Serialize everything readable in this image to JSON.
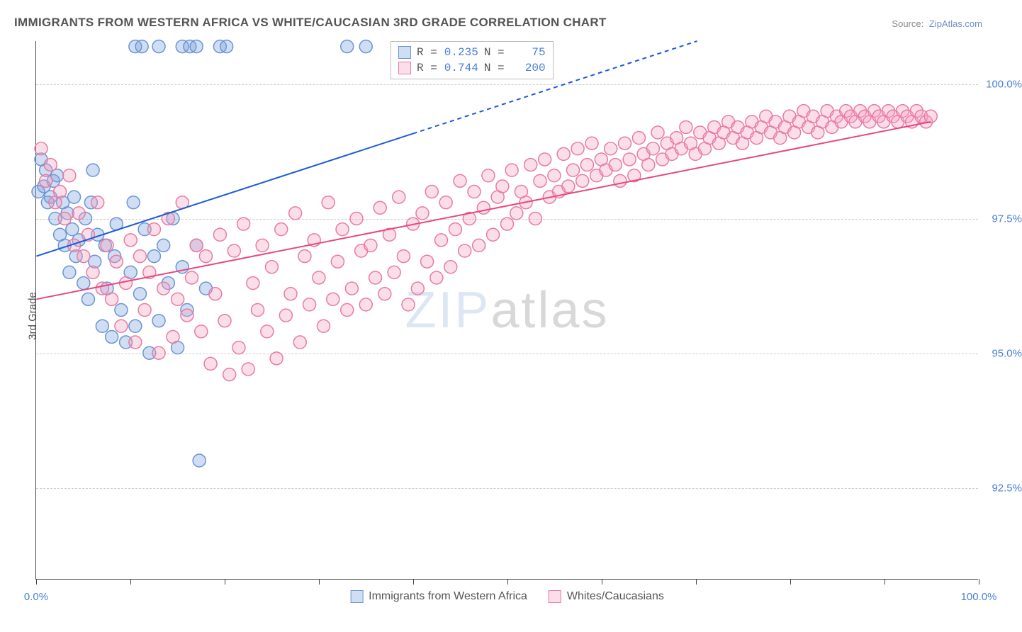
{
  "title": "IMMIGRANTS FROM WESTERN AFRICA VS WHITE/CAUCASIAN 3RD GRADE CORRELATION CHART",
  "source_label": "Source:",
  "source_value": "ZipAtlas.com",
  "ylabel": "3rd Grade",
  "watermark_a": "ZIP",
  "watermark_b": "atlas",
  "chart": {
    "type": "scatter-correlation",
    "background_color": "#ffffff",
    "grid_color": "#cccccc",
    "axis_color": "#444444",
    "label_color": "#4a7fd8",
    "xlim": [
      0,
      100
    ],
    "ylim": [
      90.8,
      100.8
    ],
    "xtick_positions": [
      0,
      10,
      20,
      30,
      40,
      50,
      60,
      70,
      80,
      90,
      100
    ],
    "xtick_labels": {
      "0": "0.0%",
      "100": "100.0%"
    },
    "ytick_positions": [
      92.5,
      95.0,
      97.5,
      100.0
    ],
    "ytick_labels": [
      "92.5%",
      "95.0%",
      "97.5%",
      "100.0%"
    ],
    "marker_radius": 9,
    "marker_stroke_width": 1.5,
    "series": [
      {
        "id": "blue",
        "label": "Immigrants from Western Africa",
        "fill": "rgba(120,160,220,0.35)",
        "stroke": "#6b94d6",
        "R_label": "R =",
        "R": "0.235",
        "N_label": "N =",
        "N": "75",
        "trend": {
          "x1": 0,
          "y1": 96.8,
          "x2": 100,
          "y2": 102.5,
          "stroke": "#1c5cd8",
          "width": 2,
          "dash_after_x": 40
        },
        "points": [
          [
            0.2,
            98.0
          ],
          [
            0.5,
            98.6
          ],
          [
            0.8,
            98.1
          ],
          [
            1.0,
            98.4
          ],
          [
            1.2,
            97.8
          ],
          [
            1.5,
            97.9
          ],
          [
            1.8,
            98.2
          ],
          [
            2.0,
            97.5
          ],
          [
            2.2,
            98.3
          ],
          [
            2.5,
            97.2
          ],
          [
            2.8,
            97.8
          ],
          [
            3.0,
            97.0
          ],
          [
            3.3,
            97.6
          ],
          [
            3.5,
            96.5
          ],
          [
            3.8,
            97.3
          ],
          [
            4.0,
            97.9
          ],
          [
            4.2,
            96.8
          ],
          [
            4.5,
            97.1
          ],
          [
            5.0,
            96.3
          ],
          [
            5.2,
            97.5
          ],
          [
            5.5,
            96.0
          ],
          [
            5.8,
            97.8
          ],
          [
            6.0,
            98.4
          ],
          [
            6.2,
            96.7
          ],
          [
            6.5,
            97.2
          ],
          [
            7.0,
            95.5
          ],
          [
            7.3,
            97.0
          ],
          [
            7.5,
            96.2
          ],
          [
            8.0,
            95.3
          ],
          [
            8.3,
            96.8
          ],
          [
            8.5,
            97.4
          ],
          [
            9.0,
            95.8
          ],
          [
            9.5,
            95.2
          ],
          [
            10.0,
            96.5
          ],
          [
            10.3,
            97.8
          ],
          [
            10.5,
            95.5
          ],
          [
            11.0,
            96.1
          ],
          [
            11.5,
            97.3
          ],
          [
            12.0,
            95.0
          ],
          [
            12.5,
            96.8
          ],
          [
            13.0,
            95.6
          ],
          [
            13.5,
            97.0
          ],
          [
            14.0,
            96.3
          ],
          [
            14.5,
            97.5
          ],
          [
            15.0,
            95.1
          ],
          [
            15.5,
            96.6
          ],
          [
            16.0,
            95.8
          ],
          [
            17.0,
            97.0
          ],
          [
            17.3,
            93.0
          ],
          [
            18.0,
            96.2
          ],
          [
            10.5,
            100.7
          ],
          [
            11.2,
            100.7
          ],
          [
            13.0,
            100.7
          ],
          [
            15.5,
            100.7
          ],
          [
            16.3,
            100.7
          ],
          [
            17.0,
            100.7
          ],
          [
            19.5,
            100.7
          ],
          [
            20.2,
            100.7
          ],
          [
            33.0,
            100.7
          ],
          [
            35.0,
            100.7
          ]
        ]
      },
      {
        "id": "pink",
        "label": "Whites/Caucasians",
        "fill": "rgba(245,160,190,0.35)",
        "stroke": "#e87ba3",
        "R_label": "R =",
        "R": "0.744",
        "N_label": "N =",
        "N": "200",
        "trend": {
          "x1": 0,
          "y1": 96.0,
          "x2": 95,
          "y2": 99.3,
          "stroke": "#e8477f",
          "width": 2
        },
        "points": [
          [
            0.5,
            98.8
          ],
          [
            1.0,
            98.2
          ],
          [
            1.5,
            98.5
          ],
          [
            2.0,
            97.8
          ],
          [
            2.5,
            98.0
          ],
          [
            3.0,
            97.5
          ],
          [
            3.5,
            98.3
          ],
          [
            4.0,
            97.0
          ],
          [
            4.5,
            97.6
          ],
          [
            5.0,
            96.8
          ],
          [
            5.5,
            97.2
          ],
          [
            6.0,
            96.5
          ],
          [
            6.5,
            97.8
          ],
          [
            7.0,
            96.2
          ],
          [
            7.5,
            97.0
          ],
          [
            8.0,
            96.0
          ],
          [
            8.5,
            96.7
          ],
          [
            9.0,
            95.5
          ],
          [
            9.5,
            96.3
          ],
          [
            10.0,
            97.1
          ],
          [
            10.5,
            95.2
          ],
          [
            11.0,
            96.8
          ],
          [
            11.5,
            95.8
          ],
          [
            12.0,
            96.5
          ],
          [
            12.5,
            97.3
          ],
          [
            13.0,
            95.0
          ],
          [
            13.5,
            96.2
          ],
          [
            14.0,
            97.5
          ],
          [
            14.5,
            95.3
          ],
          [
            15.0,
            96.0
          ],
          [
            15.5,
            97.8
          ],
          [
            16.0,
            95.7
          ],
          [
            16.5,
            96.4
          ],
          [
            17.0,
            97.0
          ],
          [
            17.5,
            95.4
          ],
          [
            18.0,
            96.8
          ],
          [
            18.5,
            94.8
          ],
          [
            19.0,
            96.1
          ],
          [
            19.5,
            97.2
          ],
          [
            20.0,
            95.6
          ],
          [
            20.5,
            94.6
          ],
          [
            21.0,
            96.9
          ],
          [
            21.5,
            95.1
          ],
          [
            22.0,
            97.4
          ],
          [
            22.5,
            94.7
          ],
          [
            23.0,
            96.3
          ],
          [
            23.5,
            95.8
          ],
          [
            24.0,
            97.0
          ],
          [
            24.5,
            95.4
          ],
          [
            25.0,
            96.6
          ],
          [
            25.5,
            94.9
          ],
          [
            26.0,
            97.3
          ],
          [
            26.5,
            95.7
          ],
          [
            27.0,
            96.1
          ],
          [
            27.5,
            97.6
          ],
          [
            28.0,
            95.2
          ],
          [
            28.5,
            96.8
          ],
          [
            29.0,
            95.9
          ],
          [
            29.5,
            97.1
          ],
          [
            30.0,
            96.4
          ],
          [
            30.5,
            95.5
          ],
          [
            31.0,
            97.8
          ],
          [
            31.5,
            96.0
          ],
          [
            32.0,
            96.7
          ],
          [
            32.5,
            97.3
          ],
          [
            33.0,
            95.8
          ],
          [
            33.5,
            96.2
          ],
          [
            34.0,
            97.5
          ],
          [
            34.5,
            96.9
          ],
          [
            35.0,
            95.9
          ],
          [
            35.5,
            97.0
          ],
          [
            36.0,
            96.4
          ],
          [
            36.5,
            97.7
          ],
          [
            37.0,
            96.1
          ],
          [
            37.5,
            97.2
          ],
          [
            38.0,
            96.5
          ],
          [
            38.5,
            97.9
          ],
          [
            39.0,
            96.8
          ],
          [
            39.5,
            95.9
          ],
          [
            40.0,
            97.4
          ],
          [
            40.5,
            96.2
          ],
          [
            41.0,
            97.6
          ],
          [
            41.5,
            96.7
          ],
          [
            42.0,
            98.0
          ],
          [
            42.5,
            96.4
          ],
          [
            43.0,
            97.1
          ],
          [
            43.5,
            97.8
          ],
          [
            44.0,
            96.6
          ],
          [
            44.5,
            97.3
          ],
          [
            45.0,
            98.2
          ],
          [
            45.5,
            96.9
          ],
          [
            46.0,
            97.5
          ],
          [
            46.5,
            98.0
          ],
          [
            47.0,
            97.0
          ],
          [
            47.5,
            97.7
          ],
          [
            48.0,
            98.3
          ],
          [
            48.5,
            97.2
          ],
          [
            49.0,
            97.9
          ],
          [
            49.5,
            98.1
          ],
          [
            50.0,
            97.4
          ],
          [
            50.5,
            98.4
          ],
          [
            51.0,
            97.6
          ],
          [
            51.5,
            98.0
          ],
          [
            52.0,
            97.8
          ],
          [
            52.5,
            98.5
          ],
          [
            53.0,
            97.5
          ],
          [
            53.5,
            98.2
          ],
          [
            54.0,
            98.6
          ],
          [
            54.5,
            97.9
          ],
          [
            55.0,
            98.3
          ],
          [
            55.5,
            98.0
          ],
          [
            56.0,
            98.7
          ],
          [
            56.5,
            98.1
          ],
          [
            57.0,
            98.4
          ],
          [
            57.5,
            98.8
          ],
          [
            58.0,
            98.2
          ],
          [
            58.5,
            98.5
          ],
          [
            59.0,
            98.9
          ],
          [
            59.5,
            98.3
          ],
          [
            60.0,
            98.6
          ],
          [
            60.5,
            98.4
          ],
          [
            61.0,
            98.8
          ],
          [
            61.5,
            98.5
          ],
          [
            62.0,
            98.2
          ],
          [
            62.5,
            98.9
          ],
          [
            63.0,
            98.6
          ],
          [
            63.5,
            98.3
          ],
          [
            64.0,
            99.0
          ],
          [
            64.5,
            98.7
          ],
          [
            65.0,
            98.5
          ],
          [
            65.5,
            98.8
          ],
          [
            66.0,
            99.1
          ],
          [
            66.5,
            98.6
          ],
          [
            67.0,
            98.9
          ],
          [
            67.5,
            98.7
          ],
          [
            68.0,
            99.0
          ],
          [
            68.5,
            98.8
          ],
          [
            69.0,
            99.2
          ],
          [
            69.5,
            98.9
          ],
          [
            70.0,
            98.7
          ],
          [
            70.5,
            99.1
          ],
          [
            71.0,
            98.8
          ],
          [
            71.5,
            99.0
          ],
          [
            72.0,
            99.2
          ],
          [
            72.5,
            98.9
          ],
          [
            73.0,
            99.1
          ],
          [
            73.5,
            99.3
          ],
          [
            74.0,
            99.0
          ],
          [
            74.5,
            99.2
          ],
          [
            75.0,
            98.9
          ],
          [
            75.5,
            99.1
          ],
          [
            76.0,
            99.3
          ],
          [
            76.5,
            99.0
          ],
          [
            77.0,
            99.2
          ],
          [
            77.5,
            99.4
          ],
          [
            78.0,
            99.1
          ],
          [
            78.5,
            99.3
          ],
          [
            79.0,
            99.0
          ],
          [
            79.5,
            99.2
          ],
          [
            80.0,
            99.4
          ],
          [
            80.5,
            99.1
          ],
          [
            81.0,
            99.3
          ],
          [
            81.5,
            99.5
          ],
          [
            82.0,
            99.2
          ],
          [
            82.5,
            99.4
          ],
          [
            83.0,
            99.1
          ],
          [
            83.5,
            99.3
          ],
          [
            84.0,
            99.5
          ],
          [
            84.5,
            99.2
          ],
          [
            85.0,
            99.4
          ],
          [
            85.5,
            99.3
          ],
          [
            86.0,
            99.5
          ],
          [
            86.5,
            99.4
          ],
          [
            87.0,
            99.3
          ],
          [
            87.5,
            99.5
          ],
          [
            88.0,
            99.4
          ],
          [
            88.5,
            99.3
          ],
          [
            89.0,
            99.5
          ],
          [
            89.5,
            99.4
          ],
          [
            90.0,
            99.3
          ],
          [
            90.5,
            99.5
          ],
          [
            91.0,
            99.4
          ],
          [
            91.5,
            99.3
          ],
          [
            92.0,
            99.5
          ],
          [
            92.5,
            99.4
          ],
          [
            93.0,
            99.3
          ],
          [
            93.5,
            99.5
          ],
          [
            94.0,
            99.4
          ],
          [
            94.5,
            99.3
          ],
          [
            95.0,
            99.4
          ]
        ]
      }
    ]
  }
}
